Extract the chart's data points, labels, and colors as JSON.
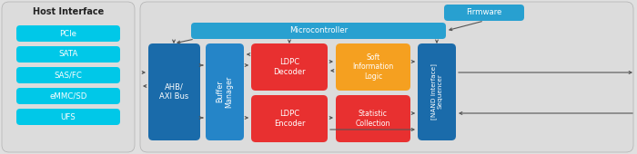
{
  "fig_width": 7.0,
  "fig_height": 1.7,
  "dpi": 100,
  "bg_color": "#e0e0e0",
  "cyan_color": "#00C8E8",
  "blue_dark": "#1A6BAA",
  "blue_mid": "#2585C8",
  "blue_ctrl": "#28A0D0",
  "red_color": "#E83030",
  "orange_color": "#F5A020",
  "white": "#FFFFFF",
  "gray_panel": "#DCDCDC",
  "host_title": "Host Interface",
  "host_items": [
    "PCIe",
    "SATA",
    "SAS/FC",
    "eMMC/SD",
    "UFS"
  ],
  "labels": {
    "ahb": "AHB/\nAXI Bus",
    "buffer": "Buffer\nManager",
    "ldpc_dec": "LDPC\nDecoder",
    "ldpc_enc": "LDPC\nEncoder",
    "soft_info": "Soft\nInformation\nLogic",
    "stat_coll": "Statistic\nCollection",
    "nand": "[NAND Interface]\nSequencer",
    "micro": "Microcontroller",
    "firmware": "Firmware"
  }
}
